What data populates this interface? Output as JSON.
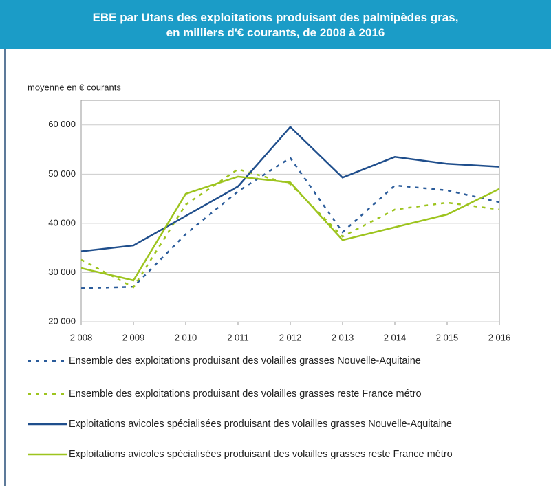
{
  "chart_data": {
    "type": "line",
    "title": "EBE par Utans des exploitations produisant des palmipèdes gras,",
    "subtitle": "en milliers d'€ courants, de 2008 à 2016",
    "y_label": "moyenne en € courants",
    "categories": [
      "2 008",
      "2 009",
      "2 010",
      "2 011",
      "2 012",
      "2 013",
      "2 014",
      "2 015",
      "2 016"
    ],
    "ylim": [
      20000,
      65000
    ],
    "yticks": [
      {
        "value": 20000,
        "label": "20 000"
      },
      {
        "value": 30000,
        "label": "30 000"
      },
      {
        "value": 40000,
        "label": "40 000"
      },
      {
        "value": 50000,
        "label": "50 000"
      },
      {
        "value": 60000,
        "label": "60 000"
      }
    ],
    "grid": true,
    "series": [
      {
        "name": "Ensemble des exploitations produisant des volailles grasses Nouvelle-Aquitaine",
        "color": "#2a5b9a",
        "dashed": true,
        "values": [
          26800,
          27100,
          37800,
          46500,
          53300,
          38200,
          47700,
          46700,
          44300
        ]
      },
      {
        "name": "Ensemble des exploitations produisant des volailles grasses reste France métro",
        "color": "#9dc41e",
        "dashed": true,
        "values": [
          32600,
          27000,
          43800,
          51000,
          48000,
          37300,
          42800,
          44200,
          42800
        ]
      },
      {
        "name": "Exploitations avicoles spécialisées produisant des volailles grasses Nouvelle-Aquitaine",
        "color": "#1f4e8c",
        "dashed": false,
        "values": [
          34300,
          35500,
          41500,
          47500,
          59600,
          49300,
          53500,
          52100,
          51500
        ]
      },
      {
        "name": "Exploitations avicoles spécialisées produisant des volailles grasses reste France métro",
        "color": "#9dc41e",
        "dashed": false,
        "values": [
          30900,
          28400,
          46000,
          49500,
          48300,
          36600,
          39200,
          41800,
          47000
        ]
      }
    ]
  }
}
